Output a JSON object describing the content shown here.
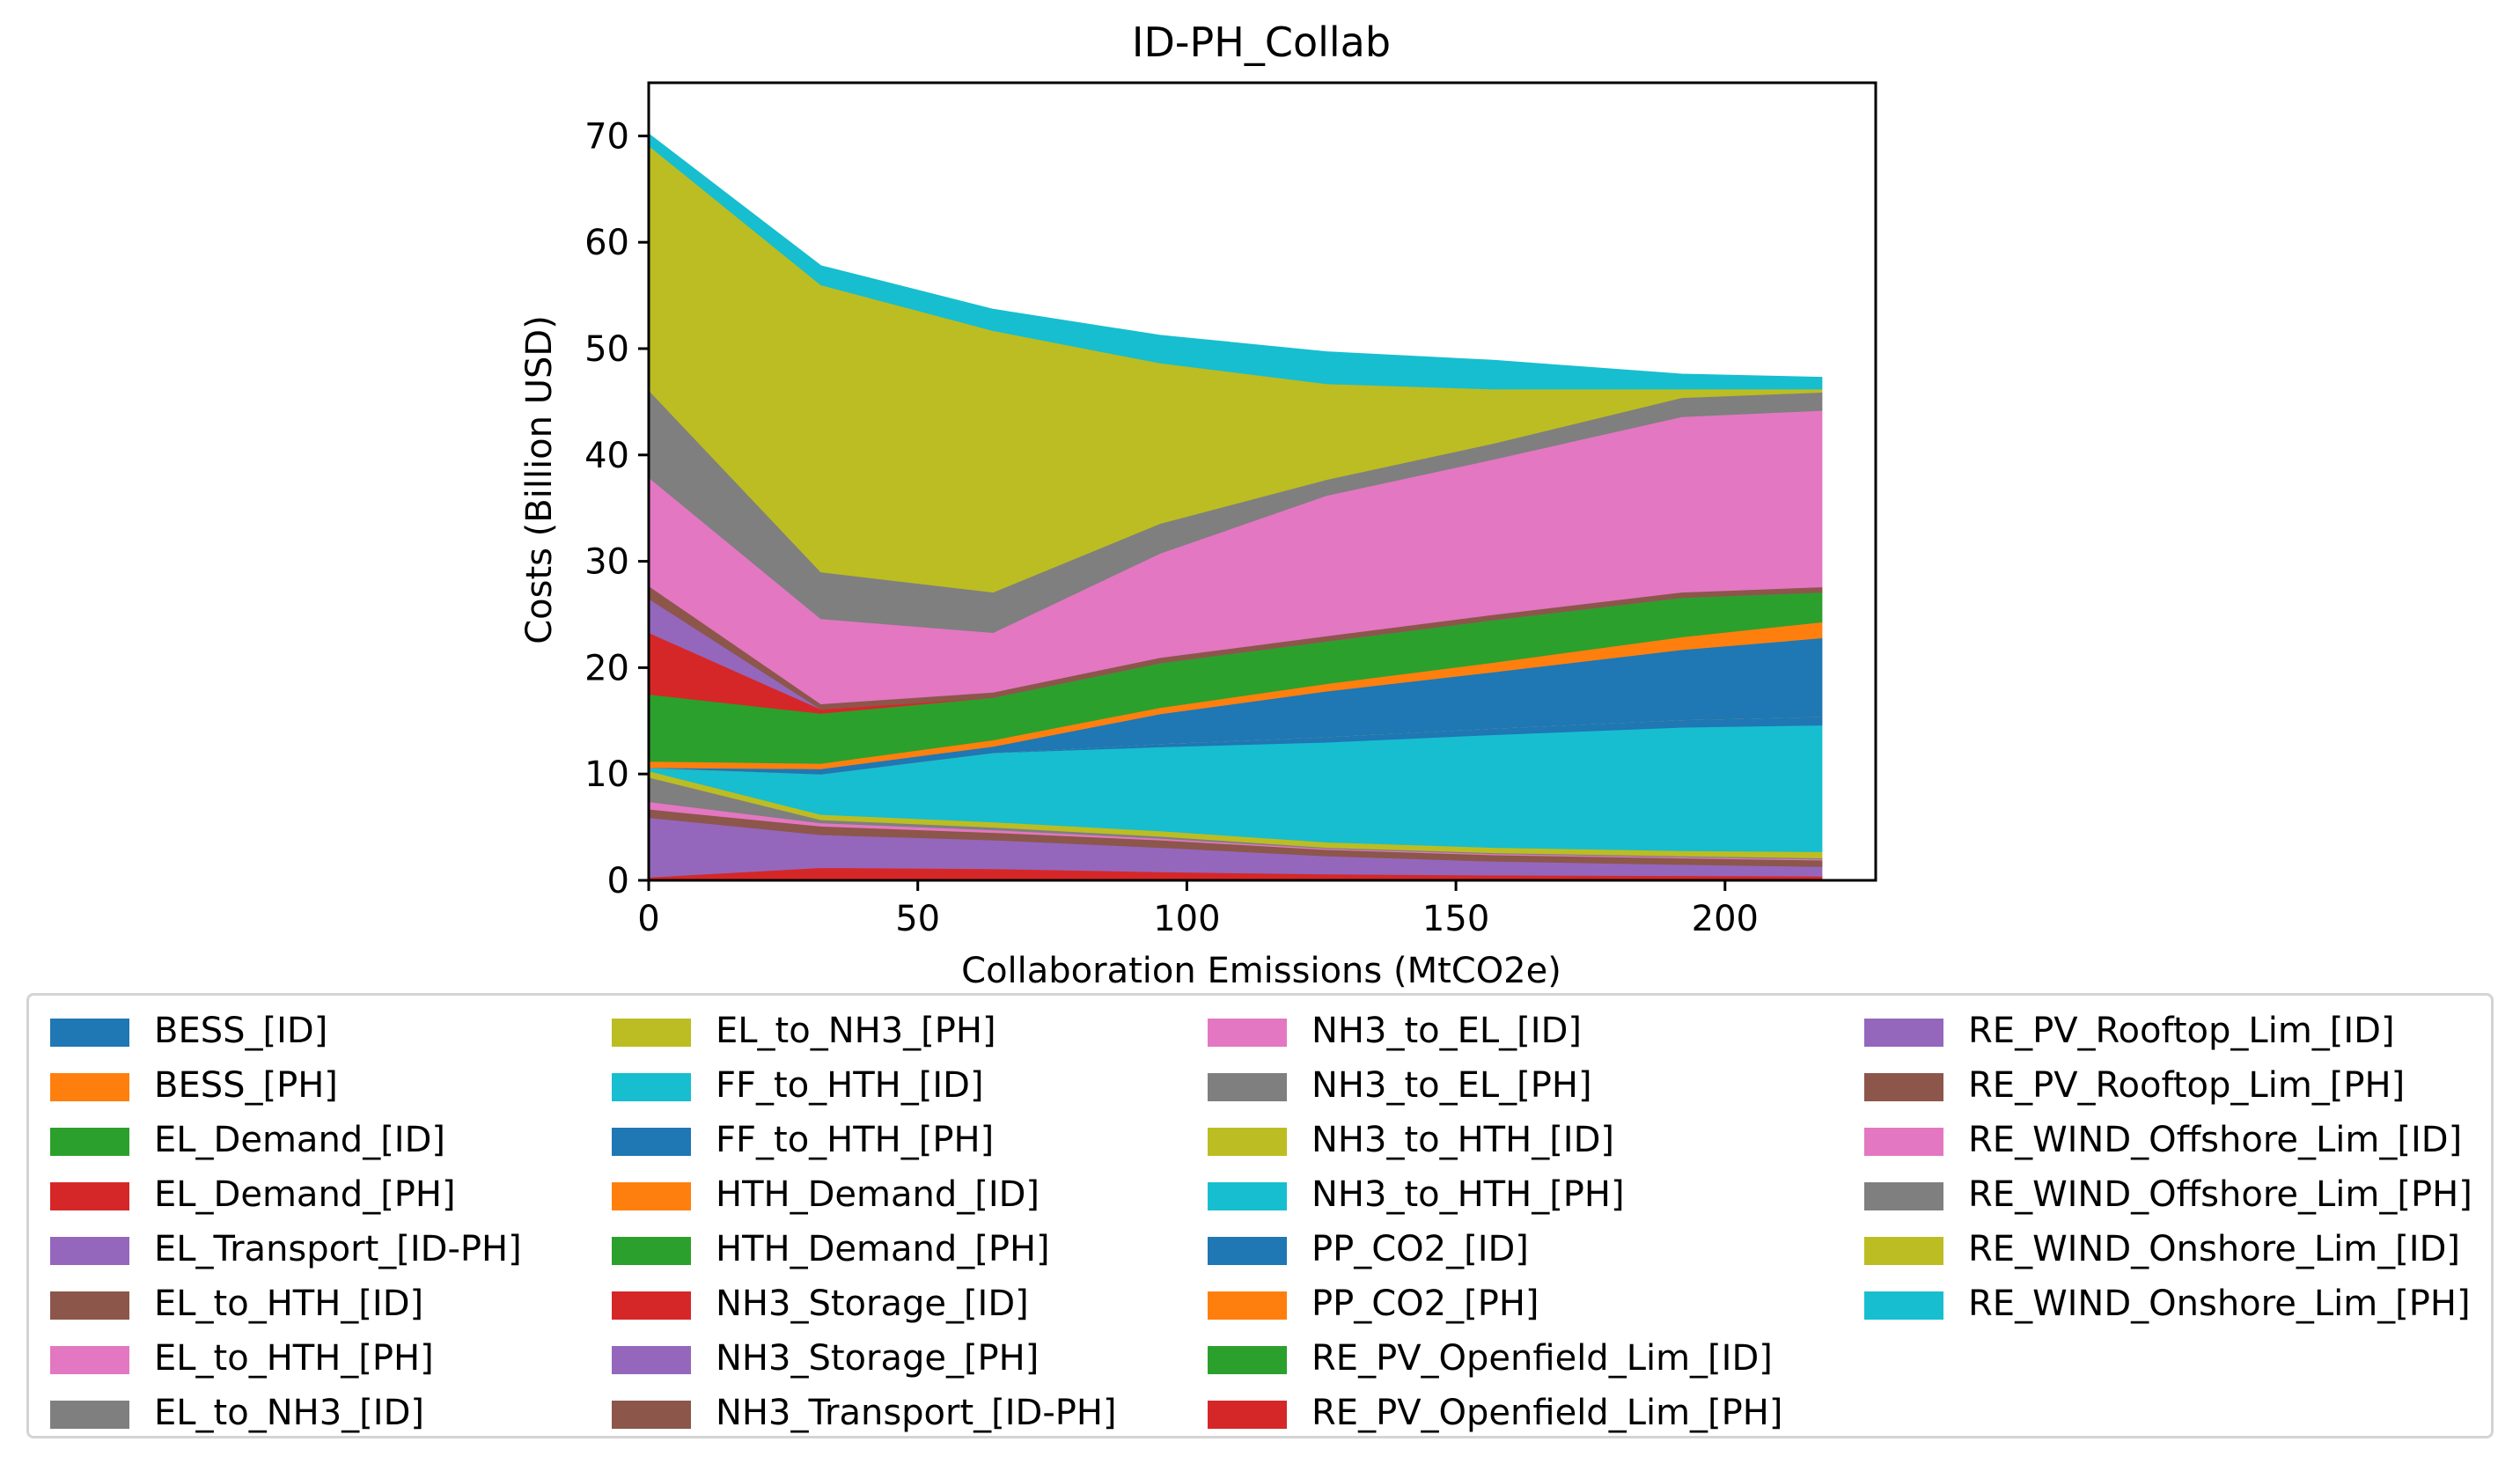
{
  "chart_data": {
    "type": "area",
    "stacked": true,
    "title": "ID-PH_Collab",
    "xlabel": "Collaboration Emissions (MtCO2e)",
    "ylabel": "Costs (Billion USD)",
    "xlim": [
      0,
      228
    ],
    "ylim": [
      0,
      75
    ],
    "xticks": [
      0,
      50,
      100,
      150,
      200
    ],
    "yticks": [
      0,
      10,
      20,
      30,
      40,
      50,
      60,
      70
    ],
    "grid": false,
    "legend_position": "bottom",
    "x": [
      0,
      32,
      64,
      95,
      126,
      157,
      192,
      218
    ],
    "series": [
      {
        "name": "BESS_[ID]",
        "color": "#1f77b4",
        "values": [
          0,
          0,
          0,
          0,
          0,
          0,
          0,
          0
        ]
      },
      {
        "name": "BESS_[PH]",
        "color": "#ff7f0e",
        "values": [
          0,
          0,
          0,
          0,
          0,
          0,
          0,
          0
        ]
      },
      {
        "name": "EL_Demand_[ID]",
        "color": "#2ca02c",
        "values": [
          0,
          0,
          0,
          0,
          0,
          0,
          0,
          0
        ]
      },
      {
        "name": "EL_Demand_[PH]",
        "color": "#d62728",
        "values": [
          0.3,
          1.2,
          1.1,
          0.8,
          0.6,
          0.5,
          0.45,
          0.4
        ]
      },
      {
        "name": "EL_Transport_[ID-PH]",
        "color": "#9467bd",
        "values": [
          5.6,
          3.1,
          2.7,
          2.3,
          1.7,
          1.3,
          1.05,
          0.9
        ]
      },
      {
        "name": "EL_to_HTH_[ID]",
        "color": "#8c564b",
        "values": [
          0.8,
          0.8,
          0.7,
          0.7,
          0.6,
          0.6,
          0.6,
          0.6
        ]
      },
      {
        "name": "EL_to_HTH_[PH]",
        "color": "#e377c2",
        "values": [
          0.7,
          0.3,
          0.25,
          0.15,
          0.1,
          0.1,
          0.1,
          0.1
        ]
      },
      {
        "name": "EL_to_NH3_[ID]",
        "color": "#7f7f7f",
        "values": [
          2.3,
          0.3,
          0.25,
          0.2,
          0.1,
          0.1,
          0.1,
          0.1
        ]
      },
      {
        "name": "EL_to_NH3_[PH]",
        "color": "#bcbd22",
        "values": [
          0.6,
          0.5,
          0.5,
          0.5,
          0.5,
          0.5,
          0.5,
          0.6
        ]
      },
      {
        "name": "FF_to_HTH_[ID]",
        "color": "#17becf",
        "values": [
          0.3,
          3.8,
          6.5,
          7.9,
          9.4,
          10.6,
          11.6,
          11.9
        ]
      },
      {
        "name": "FF_to_HTH_[PH]",
        "color": "#1f77b4",
        "values": [
          0,
          0,
          0,
          0.3,
          0.5,
          0.6,
          0.7,
          0.8
        ]
      },
      {
        "name": "HTH_Demand_[ID]",
        "color": "#ff7f0e",
        "values": [
          0,
          0,
          0,
          0,
          0,
          0,
          0,
          0
        ]
      },
      {
        "name": "HTH_Demand_[PH]",
        "color": "#2ca02c",
        "values": [
          0,
          0,
          0,
          0,
          0,
          0,
          0,
          0
        ]
      },
      {
        "name": "NH3_Storage_[ID]",
        "color": "#d62728",
        "values": [
          0,
          0,
          0,
          0,
          0,
          0,
          0,
          0
        ]
      },
      {
        "name": "NH3_Storage_[PH]",
        "color": "#9467bd",
        "values": [
          0,
          0,
          0,
          0,
          0,
          0,
          0,
          0
        ]
      },
      {
        "name": "NH3_Transport_[ID-PH]",
        "color": "#8c564b",
        "values": [
          0,
          0,
          0,
          0,
          0,
          0,
          0,
          0
        ]
      },
      {
        "name": "NH3_to_EL_[ID]",
        "color": "#e377c2",
        "values": [
          0,
          0,
          0,
          0,
          0,
          0,
          0,
          0
        ]
      },
      {
        "name": "NH3_to_EL_[PH]",
        "color": "#7f7f7f",
        "values": [
          0,
          0,
          0,
          0,
          0,
          0,
          0,
          0
        ]
      },
      {
        "name": "NH3_to_HTH_[ID]",
        "color": "#bcbd22",
        "values": [
          0,
          0,
          0,
          0,
          0,
          0,
          0,
          0
        ]
      },
      {
        "name": "NH3_to_HTH_[PH]",
        "color": "#17becf",
        "values": [
          0,
          0,
          0,
          0,
          0,
          0,
          0,
          0
        ]
      },
      {
        "name": "PP_CO2_[ID]",
        "color": "#1f77b4",
        "values": [
          0,
          0.5,
          0.6,
          2.8,
          4.3,
          5.3,
          6.6,
          7.4
        ]
      },
      {
        "name": "PP_CO2_[PH]",
        "color": "#ff7f0e",
        "values": [
          0.6,
          0.5,
          0.6,
          0.6,
          0.7,
          0.9,
          1.2,
          1.5
        ]
      },
      {
        "name": "RE_PV_Openfield_Lim_[ID]",
        "color": "#2ca02c",
        "values": [
          6.3,
          4.7,
          4.0,
          4.2,
          4.0,
          4.0,
          3.7,
          2.8
        ]
      },
      {
        "name": "RE_PV_Openfield_Lim_[PH]",
        "color": "#d62728",
        "values": [
          5.8,
          0.4,
          0,
          0,
          0,
          0,
          0,
          0
        ]
      },
      {
        "name": "RE_PV_Rooftop_Lim_[ID]",
        "color": "#9467bd",
        "values": [
          3.2,
          0,
          0,
          0,
          0,
          0,
          0,
          0
        ]
      },
      {
        "name": "RE_PV_Rooftop_Lim_[PH]",
        "color": "#8c564b",
        "values": [
          1.2,
          0.5,
          0.5,
          0.5,
          0.5,
          0.5,
          0.5,
          0.5
        ]
      },
      {
        "name": "RE_WIND_Offshore_Lim_[ID]",
        "color": "#e377c2",
        "values": [
          10.2,
          8.0,
          5.6,
          9.8,
          13.2,
          14.6,
          16.5,
          16.6
        ]
      },
      {
        "name": "RE_WIND_Offshore_Lim_[PH]",
        "color": "#7f7f7f",
        "values": [
          8.2,
          4.4,
          3.8,
          2.8,
          1.5,
          1.5,
          1.8,
          1.7
        ]
      },
      {
        "name": "RE_WIND_Onshore_Lim_[ID]",
        "color": "#bcbd22",
        "values": [
          23.0,
          27.0,
          24.6,
          15.1,
          9.0,
          5.1,
          0.8,
          0.3
        ]
      },
      {
        "name": "RE_WIND_Onshore_Lim_[PH]",
        "color": "#17becf",
        "values": [
          1.1,
          1.8,
          2.0,
          2.6,
          3.0,
          2.7,
          1.4,
          1.1
        ]
      }
    ]
  }
}
